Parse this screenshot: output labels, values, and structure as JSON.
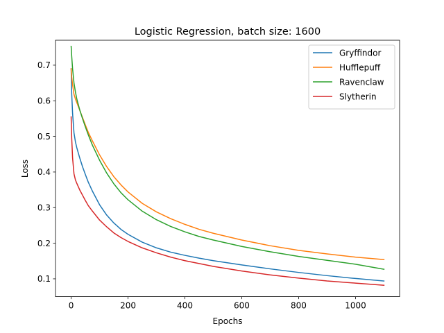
{
  "chart_data": {
    "type": "line",
    "title": "Logistic Regression, batch size: 1600",
    "xlabel": "Epochs",
    "ylabel": "Loss",
    "xlim": [
      -55,
      1155
    ],
    "ylim": [
      0.05,
      0.77
    ],
    "xticks": [
      0,
      200,
      400,
      600,
      800,
      1000
    ],
    "xtick_labels": [
      "0",
      "200",
      "400",
      "600",
      "800",
      "1000"
    ],
    "yticks": [
      0.1,
      0.2,
      0.3,
      0.4,
      0.5,
      0.6,
      0.7
    ],
    "ytick_labels": [
      "0.1",
      "0.2",
      "0.3",
      "0.4",
      "0.5",
      "0.6",
      "0.7"
    ],
    "grid": false,
    "legend_position": "top-right",
    "x": [
      0,
      2,
      5,
      10,
      15,
      20,
      30,
      40,
      50,
      60,
      75,
      100,
      125,
      150,
      175,
      200,
      250,
      300,
      350,
      400,
      450,
      500,
      600,
      700,
      800,
      900,
      1000,
      1100
    ],
    "series": [
      {
        "name": "Gryffindor",
        "color": "#1f77b4",
        "values": [
          0.69,
          0.62,
          0.565,
          0.51,
          0.485,
          0.468,
          0.44,
          0.415,
          0.393,
          0.372,
          0.346,
          0.308,
          0.279,
          0.257,
          0.239,
          0.225,
          0.203,
          0.187,
          0.175,
          0.166,
          0.158,
          0.151,
          0.139,
          0.128,
          0.118,
          0.109,
          0.101,
          0.094
        ]
      },
      {
        "name": "Hufflepuff",
        "color": "#ff7f0e",
        "values": [
          0.69,
          0.668,
          0.645,
          0.618,
          0.605,
          0.595,
          0.574,
          0.553,
          0.532,
          0.512,
          0.487,
          0.448,
          0.415,
          0.387,
          0.364,
          0.344,
          0.312,
          0.288,
          0.269,
          0.253,
          0.239,
          0.228,
          0.209,
          0.193,
          0.18,
          0.17,
          0.161,
          0.154
        ]
      },
      {
        "name": "Ravenclaw",
        "color": "#2ca02c",
        "values": [
          0.753,
          0.725,
          0.69,
          0.65,
          0.625,
          0.605,
          0.575,
          0.55,
          0.527,
          0.505,
          0.475,
          0.433,
          0.397,
          0.367,
          0.342,
          0.322,
          0.29,
          0.266,
          0.247,
          0.232,
          0.219,
          0.209,
          0.191,
          0.176,
          0.163,
          0.152,
          0.141,
          0.127
        ]
      },
      {
        "name": "Slytherin",
        "color": "#d62728",
        "values": [
          0.555,
          0.495,
          0.44,
          0.395,
          0.378,
          0.368,
          0.35,
          0.335,
          0.32,
          0.306,
          0.29,
          0.265,
          0.246,
          0.229,
          0.216,
          0.205,
          0.187,
          0.173,
          0.161,
          0.151,
          0.143,
          0.135,
          0.122,
          0.111,
          0.102,
          0.094,
          0.088,
          0.082
        ]
      }
    ]
  }
}
